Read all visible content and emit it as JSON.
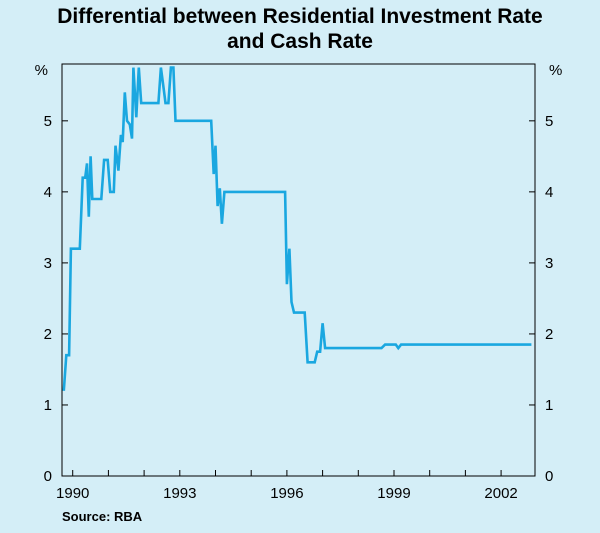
{
  "title_line1": "Differential between Residential Investment Rate",
  "title_line2": "and Cash Rate",
  "source": "Source: RBA",
  "colors": {
    "line": "#1aa7e0",
    "background": "#d4eef7",
    "axis": "#000000"
  },
  "chart_data": {
    "type": "line",
    "title": "Differential between Residential Investment Rate and Cash Rate",
    "xlabel": "",
    "ylabel": "%",
    "ylim": [
      0,
      5.8
    ],
    "xlim": [
      1989.7,
      2002.95
    ],
    "yticks": [
      0,
      1,
      2,
      3,
      4,
      5
    ],
    "xticks": [
      1990,
      1993,
      1996,
      1999,
      2002
    ],
    "y_unit_left": "%",
    "y_unit_right": "%",
    "series": [
      {
        "name": "Differential",
        "points": [
          [
            1989.75,
            1.2
          ],
          [
            1989.82,
            1.7
          ],
          [
            1989.9,
            1.7
          ],
          [
            1989.95,
            3.2
          ],
          [
            1990.2,
            3.2
          ],
          [
            1990.28,
            4.2
          ],
          [
            1990.35,
            4.2
          ],
          [
            1990.4,
            4.4
          ],
          [
            1990.45,
            3.65
          ],
          [
            1990.5,
            4.5
          ],
          [
            1990.55,
            3.9
          ],
          [
            1990.8,
            3.9
          ],
          [
            1990.88,
            4.45
          ],
          [
            1990.98,
            4.45
          ],
          [
            1991.05,
            4.0
          ],
          [
            1991.15,
            4.0
          ],
          [
            1991.2,
            4.65
          ],
          [
            1991.28,
            4.3
          ],
          [
            1991.35,
            4.8
          ],
          [
            1991.4,
            4.7
          ],
          [
            1991.46,
            5.4
          ],
          [
            1991.52,
            5.0
          ],
          [
            1991.6,
            4.95
          ],
          [
            1991.66,
            4.75
          ],
          [
            1991.7,
            5.75
          ],
          [
            1991.78,
            5.05
          ],
          [
            1991.85,
            5.75
          ],
          [
            1991.92,
            5.25
          ],
          [
            1992.4,
            5.25
          ],
          [
            1992.47,
            5.75
          ],
          [
            1992.55,
            5.45
          ],
          [
            1992.6,
            5.25
          ],
          [
            1992.68,
            5.25
          ],
          [
            1992.75,
            5.75
          ],
          [
            1992.82,
            5.75
          ],
          [
            1992.88,
            5.0
          ],
          [
            1993.88,
            5.0
          ],
          [
            1993.95,
            4.25
          ],
          [
            1994.0,
            4.65
          ],
          [
            1994.06,
            3.8
          ],
          [
            1994.12,
            4.05
          ],
          [
            1994.18,
            3.55
          ],
          [
            1994.25,
            4.0
          ],
          [
            1995.95,
            4.0
          ],
          [
            1996.0,
            2.7
          ],
          [
            1996.07,
            3.2
          ],
          [
            1996.13,
            2.45
          ],
          [
            1996.2,
            2.3
          ],
          [
            1996.5,
            2.3
          ],
          [
            1996.58,
            1.6
          ],
          [
            1996.78,
            1.6
          ],
          [
            1996.85,
            1.75
          ],
          [
            1996.93,
            1.75
          ],
          [
            1997.0,
            2.15
          ],
          [
            1997.07,
            1.8
          ],
          [
            1998.65,
            1.8
          ],
          [
            1998.75,
            1.85
          ],
          [
            1999.05,
            1.85
          ],
          [
            1999.12,
            1.8
          ],
          [
            1999.2,
            1.85
          ],
          [
            2002.85,
            1.85
          ]
        ]
      }
    ]
  }
}
